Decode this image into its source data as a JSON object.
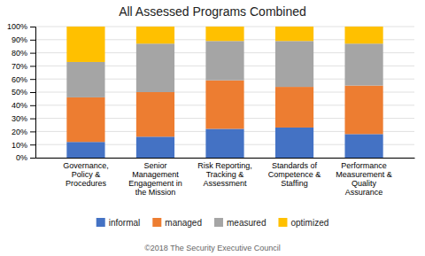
{
  "chart_data": {
    "type": "bar",
    "stacked": true,
    "title": "All Assessed Programs Combined",
    "categories": [
      "Governance,\nPolicy &\nProcedures",
      "Senior\nManagement\nEngagement in\nthe Mission",
      "Risk Reporting,\nTracking &\nAssessment",
      "Standards of\nCompetence &\nStaffing",
      "Performance\nMeasurement &\nQuality\nAssurance"
    ],
    "series": [
      {
        "name": "informal",
        "color": "#4472C4",
        "values": [
          12,
          16,
          22,
          23,
          18
        ]
      },
      {
        "name": "managed",
        "color": "#ED7D31",
        "values": [
          34,
          34,
          37,
          31,
          37
        ]
      },
      {
        "name": "measured",
        "color": "#A5A5A5",
        "values": [
          27,
          37,
          30,
          35,
          32
        ]
      },
      {
        "name": "optimized",
        "color": "#FFC000",
        "values": [
          27,
          13,
          11,
          11,
          13
        ]
      }
    ],
    "ylim": [
      0,
      100
    ],
    "yticks": [
      {
        "value": 0,
        "label": "0%"
      },
      {
        "value": 10,
        "label": "10%"
      },
      {
        "value": 20,
        "label": "20%"
      },
      {
        "value": 30,
        "label": "30%"
      },
      {
        "value": 40,
        "label": "40%"
      },
      {
        "value": 50,
        "label": "50%"
      },
      {
        "value": 60,
        "label": "60%"
      },
      {
        "value": 70,
        "label": "70%"
      },
      {
        "value": 80,
        "label": "80%"
      },
      {
        "value": 90,
        "label": "90%"
      },
      {
        "value": 100,
        "label": "100%"
      }
    ],
    "grid": true,
    "legend": "bottom",
    "annotations": [
      "©2018 The Security Executive Council"
    ]
  }
}
